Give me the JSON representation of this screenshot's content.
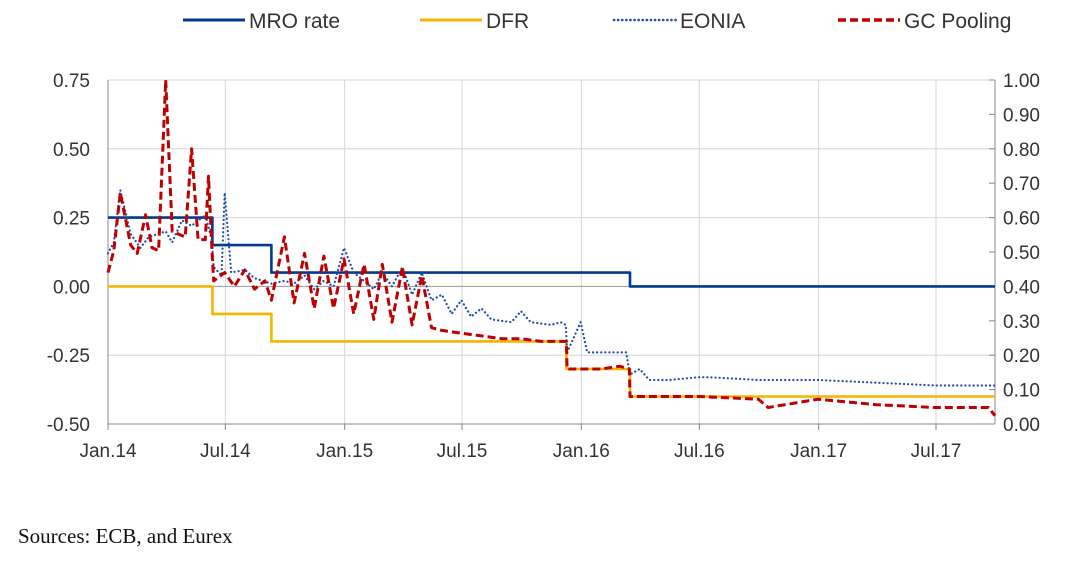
{
  "chart_data": {
    "type": "line",
    "title": "",
    "xlabel": "",
    "ylabel": "",
    "ylim": [
      -0.5,
      0.75
    ],
    "ylim_right": [
      0.0,
      1.0
    ],
    "y_ticks_left": [
      "0.75",
      "0.50",
      "0.25",
      "0.00",
      "-0.25",
      "-0.50"
    ],
    "y_ticks_right": [
      "1.00",
      "0.90",
      "0.80",
      "0.70",
      "0.60",
      "0.50",
      "0.40",
      "0.30",
      "0.20",
      "0.10",
      "0.00"
    ],
    "x_ticks": [
      "Jan.14",
      "Jul.14",
      "Jan.15",
      "Jul.15",
      "Jan.16",
      "Jul.16",
      "Jan.17",
      "Jul.17"
    ],
    "x_range": [
      "2014-01-01",
      "2017-09-30"
    ],
    "grid": true,
    "legend_position": "top",
    "series": [
      {
        "name": "MRO rate",
        "style": "solid",
        "color": "#003a8c",
        "points": [
          [
            "2014-01-01",
            0.25
          ],
          [
            "2014-06-11",
            0.15
          ],
          [
            "2014-09-10",
            0.05
          ],
          [
            "2016-03-16",
            0.0
          ],
          [
            "2017-09-30",
            0.0
          ]
        ]
      },
      {
        "name": "DFR",
        "style": "solid",
        "color": "#f5b400",
        "points": [
          [
            "2014-01-01",
            0.0
          ],
          [
            "2014-06-11",
            -0.1
          ],
          [
            "2014-09-10",
            -0.2
          ],
          [
            "2015-12-09",
            -0.3
          ],
          [
            "2016-03-16",
            -0.4
          ],
          [
            "2017-09-30",
            -0.4
          ]
        ]
      },
      {
        "name": "EONIA",
        "style": "dotted",
        "color": "#1f4ea8",
        "points": [
          [
            "2014-01-01",
            0.12
          ],
          [
            "2014-01-10",
            0.16
          ],
          [
            "2014-01-20",
            0.35
          ],
          [
            "2014-02-05",
            0.19
          ],
          [
            "2014-02-20",
            0.14
          ],
          [
            "2014-03-05",
            0.18
          ],
          [
            "2014-03-31",
            0.2
          ],
          [
            "2014-04-10",
            0.16
          ],
          [
            "2014-04-25",
            0.24
          ],
          [
            "2014-05-10",
            0.22
          ],
          [
            "2014-05-31",
            0.26
          ],
          [
            "2014-06-10",
            0.17
          ],
          [
            "2014-06-13",
            0.07
          ],
          [
            "2014-06-25",
            0.04
          ],
          [
            "2014-06-30",
            0.34
          ],
          [
            "2014-07-10",
            0.05
          ],
          [
            "2014-07-31",
            0.06
          ],
          [
            "2014-08-15",
            0.03
          ],
          [
            "2014-09-10",
            0.01
          ],
          [
            "2014-09-30",
            0.02
          ],
          [
            "2014-10-15",
            0.01
          ],
          [
            "2014-10-31",
            0.04
          ],
          [
            "2014-11-15",
            -0.01
          ],
          [
            "2014-11-30",
            0.02
          ],
          [
            "2014-12-15",
            0.0
          ],
          [
            "2014-12-31",
            0.14
          ],
          [
            "2015-01-15",
            0.05
          ],
          [
            "2015-01-31",
            0.02
          ],
          [
            "2015-02-15",
            -0.01
          ],
          [
            "2015-02-28",
            0.05
          ],
          [
            "2015-03-15",
            0.0
          ],
          [
            "2015-03-31",
            0.07
          ],
          [
            "2015-04-15",
            -0.03
          ],
          [
            "2015-04-30",
            0.05
          ],
          [
            "2015-05-15",
            -0.05
          ],
          [
            "2015-05-31",
            -0.03
          ],
          [
            "2015-06-15",
            -0.1
          ],
          [
            "2015-06-30",
            -0.05
          ],
          [
            "2015-07-15",
            -0.11
          ],
          [
            "2015-07-31",
            -0.08
          ],
          [
            "2015-08-15",
            -0.12
          ],
          [
            "2015-09-15",
            -0.13
          ],
          [
            "2015-09-30",
            -0.09
          ],
          [
            "2015-10-15",
            -0.13
          ],
          [
            "2015-11-15",
            -0.14
          ],
          [
            "2015-11-30",
            -0.13
          ],
          [
            "2015-12-08",
            -0.14
          ],
          [
            "2015-12-10",
            -0.24
          ],
          [
            "2015-12-31",
            -0.13
          ],
          [
            "2016-01-10",
            -0.24
          ],
          [
            "2016-02-15",
            -0.24
          ],
          [
            "2016-03-10",
            -0.24
          ],
          [
            "2016-03-16",
            -0.32
          ],
          [
            "2016-03-31",
            -0.3
          ],
          [
            "2016-04-15",
            -0.34
          ],
          [
            "2016-05-15",
            -0.34
          ],
          [
            "2016-06-30",
            -0.33
          ],
          [
            "2016-07-15",
            -0.33
          ],
          [
            "2016-09-30",
            -0.34
          ],
          [
            "2016-12-31",
            -0.34
          ],
          [
            "2017-03-31",
            -0.35
          ],
          [
            "2017-06-30",
            -0.36
          ],
          [
            "2017-09-30",
            -0.36
          ]
        ]
      },
      {
        "name": "GC Pooling",
        "style": "dashed",
        "color": "#c00000",
        "points": [
          [
            "2014-01-01",
            0.05
          ],
          [
            "2014-01-10",
            0.13
          ],
          [
            "2014-01-20",
            0.34
          ],
          [
            "2014-02-05",
            0.15
          ],
          [
            "2014-02-15",
            0.12
          ],
          [
            "2014-02-28",
            0.26
          ],
          [
            "2014-03-10",
            0.14
          ],
          [
            "2014-03-20",
            0.13
          ],
          [
            "2014-03-31",
            0.75
          ],
          [
            "2014-04-10",
            0.2
          ],
          [
            "2014-04-30",
            0.18
          ],
          [
            "2014-05-10",
            0.5
          ],
          [
            "2014-05-20",
            0.17
          ],
          [
            "2014-05-31",
            0.17
          ],
          [
            "2014-06-05",
            0.4
          ],
          [
            "2014-06-11",
            0.1
          ],
          [
            "2014-06-13",
            0.02
          ],
          [
            "2014-06-30",
            0.05
          ],
          [
            "2014-07-15",
            0.0
          ],
          [
            "2014-07-31",
            0.06
          ],
          [
            "2014-08-15",
            -0.01
          ],
          [
            "2014-08-31",
            0.02
          ],
          [
            "2014-09-10",
            -0.05
          ],
          [
            "2014-09-30",
            0.18
          ],
          [
            "2014-10-15",
            -0.06
          ],
          [
            "2014-10-31",
            0.12
          ],
          [
            "2014-11-15",
            -0.08
          ],
          [
            "2014-11-30",
            0.11
          ],
          [
            "2014-12-15",
            -0.08
          ],
          [
            "2014-12-31",
            0.1
          ],
          [
            "2015-01-15",
            -0.1
          ],
          [
            "2015-01-31",
            0.08
          ],
          [
            "2015-02-15",
            -0.12
          ],
          [
            "2015-02-28",
            0.08
          ],
          [
            "2015-03-15",
            -0.13
          ],
          [
            "2015-03-31",
            0.07
          ],
          [
            "2015-04-15",
            -0.14
          ],
          [
            "2015-04-30",
            0.04
          ],
          [
            "2015-05-15",
            -0.15
          ],
          [
            "2015-05-31",
            -0.16
          ],
          [
            "2015-06-30",
            -0.17
          ],
          [
            "2015-07-31",
            -0.18
          ],
          [
            "2015-08-31",
            -0.19
          ],
          [
            "2015-09-30",
            -0.19
          ],
          [
            "2015-10-31",
            -0.2
          ],
          [
            "2015-11-30",
            -0.2
          ],
          [
            "2015-12-09",
            -0.2
          ],
          [
            "2015-12-10",
            -0.3
          ],
          [
            "2016-01-31",
            -0.3
          ],
          [
            "2016-02-29",
            -0.29
          ],
          [
            "2016-03-15",
            -0.3
          ],
          [
            "2016-03-16",
            -0.4
          ],
          [
            "2016-04-30",
            -0.4
          ],
          [
            "2016-06-30",
            -0.4
          ],
          [
            "2016-09-30",
            -0.41
          ],
          [
            "2016-10-15",
            -0.44
          ],
          [
            "2016-12-31",
            -0.41
          ],
          [
            "2017-03-31",
            -0.43
          ],
          [
            "2017-06-30",
            -0.44
          ],
          [
            "2017-09-20",
            -0.44
          ],
          [
            "2017-09-30",
            -0.47
          ]
        ]
      }
    ],
    "source_note": "Sources: ECB, and Eurex"
  }
}
